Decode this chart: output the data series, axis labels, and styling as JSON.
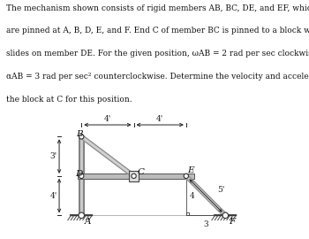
{
  "text_lines": [
    "The mechanism shown consists of rigid members AB, BC, DE, and EF, which",
    "are pinned at A, B, D, E, and F. End C of member BC is pinned to a block which",
    "slides on member DE. For the given position, ωAB = 2 rad per sec clockwise and",
    "αAB = 3 rad per sec² counterclockwise. Determine the velocity and acceleration of",
    "the block at C for this position."
  ],
  "points": {
    "A": [
      0.0,
      0.0
    ],
    "B": [
      0.0,
      3.0
    ],
    "D": [
      0.0,
      1.5
    ],
    "C": [
      2.0,
      1.5
    ],
    "E": [
      4.0,
      1.5
    ],
    "F": [
      5.5,
      0.0
    ]
  },
  "dim_color": "#222222",
  "label_color": "#111111",
  "member_color": "#aaaaaa",
  "bg_color": "#ffffff"
}
